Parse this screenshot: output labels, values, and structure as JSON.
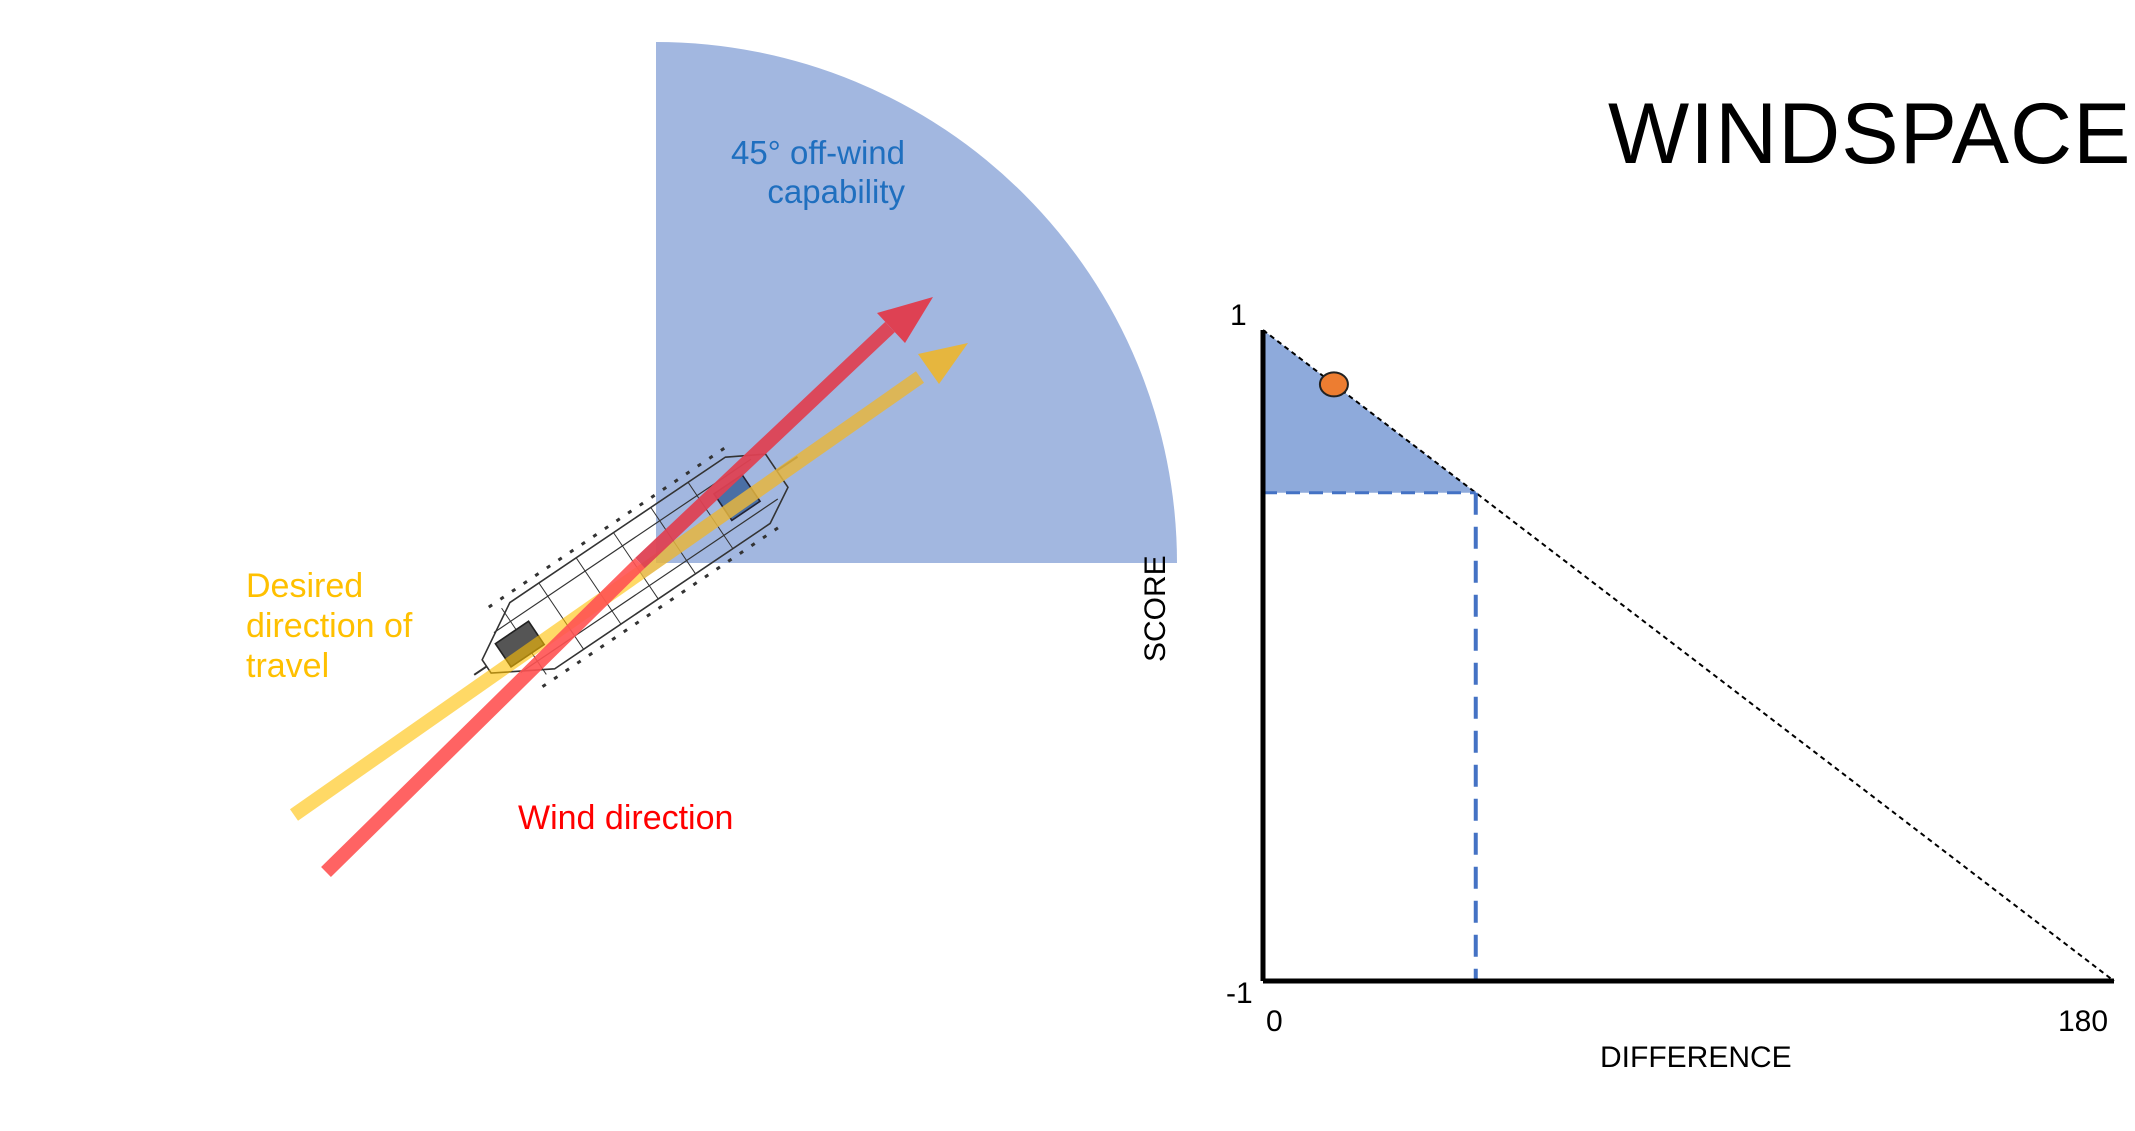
{
  "title": "WINDSPACE",
  "capability_label": [
    "45° off-wind",
    "capability"
  ],
  "desired_label": [
    "Desired",
    "direction of",
    "travel"
  ],
  "wind_label": "Wind direction",
  "colors": {
    "sector_fill": "#a2b7e0",
    "capability_text": "#1f6fbf",
    "desired": "#ffc000",
    "desired_arrow": "#e6b63e",
    "wind": "#ff5252",
    "wind_arrow": "#de4153",
    "graph_shade": "#8eaadb",
    "dashed_marker": "#4472c4",
    "score_point": "#ed7d31"
  },
  "icons": {
    "boat": "boat-icon"
  },
  "chart_data": {
    "type": "line",
    "xlabel": "DIFFERENCE",
    "ylabel": "SCORE",
    "x_ticks": [
      "0",
      "180"
    ],
    "y_ticks": [
      "1",
      "-1"
    ],
    "xlim": [
      0,
      180
    ],
    "ylim": [
      -1,
      1
    ],
    "series": [
      {
        "x": [
          0,
          180
        ],
        "y": [
          1,
          -1
        ]
      }
    ],
    "threshold": {
      "x": 45,
      "y": 0.5
    },
    "point": {
      "x": 15,
      "y": 0.833
    }
  }
}
